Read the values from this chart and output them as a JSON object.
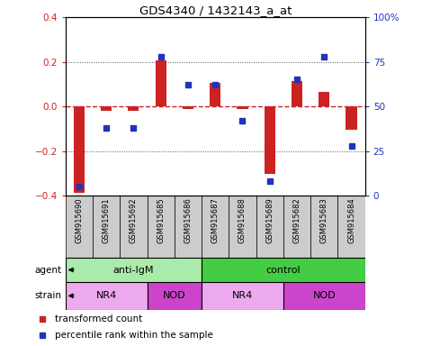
{
  "title": "GDS4340 / 1432143_a_at",
  "samples": [
    "GSM915690",
    "GSM915691",
    "GSM915692",
    "GSM915685",
    "GSM915686",
    "GSM915687",
    "GSM915688",
    "GSM915689",
    "GSM915682",
    "GSM915683",
    "GSM915684"
  ],
  "red_values": [
    -0.39,
    -0.02,
    -0.02,
    0.205,
    -0.01,
    0.105,
    -0.01,
    -0.305,
    0.115,
    0.065,
    -0.105
  ],
  "blue_values": [
    5,
    38,
    38,
    78,
    62,
    62,
    42,
    8,
    65,
    78,
    28
  ],
  "ylim_left": [
    -0.4,
    0.4
  ],
  "ylim_right": [
    0,
    100
  ],
  "yticks_left": [
    -0.4,
    -0.2,
    0.0,
    0.2,
    0.4
  ],
  "yticks_right": [
    0,
    25,
    50,
    75,
    100
  ],
  "yticklabels_right": [
    "0",
    "25",
    "50",
    "75",
    "100%"
  ],
  "red_color": "#cc2222",
  "blue_color": "#2233bb",
  "zero_line_color": "#cc2222",
  "dotted_line_color": "#555555",
  "agent_groups": [
    {
      "label": "anti-IgM",
      "start": 0,
      "end": 5,
      "color": "#aaeaaa"
    },
    {
      "label": "control",
      "start": 5,
      "end": 11,
      "color": "#44cc44"
    }
  ],
  "strain_groups": [
    {
      "label": "NR4",
      "start": 0,
      "end": 3,
      "color": "#eeaaee"
    },
    {
      "label": "NOD",
      "start": 3,
      "end": 5,
      "color": "#cc44cc"
    },
    {
      "label": "NR4",
      "start": 5,
      "end": 8,
      "color": "#eeaaee"
    },
    {
      "label": "NOD",
      "start": 8,
      "end": 11,
      "color": "#cc44cc"
    }
  ],
  "bar_width": 0.4,
  "legend_red": "transformed count",
  "legend_blue": "percentile rank within the sample",
  "sample_bg": "#cccccc"
}
